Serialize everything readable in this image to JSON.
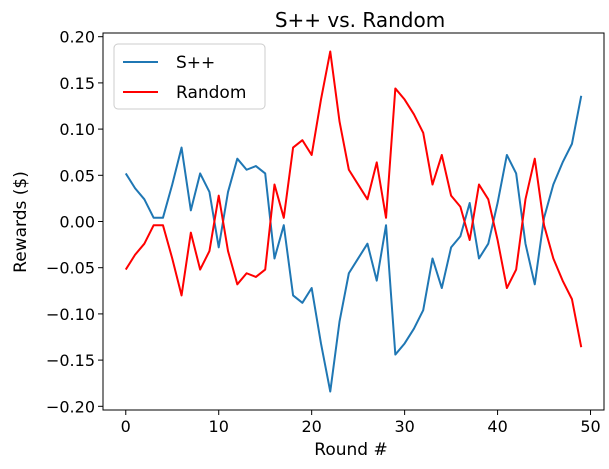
{
  "chart_data": {
    "type": "line",
    "title": "S++ vs. Random",
    "xlabel": "Round #",
    "ylabel": "Rewards ($)",
    "xlim": [
      -2.45,
      51.45
    ],
    "ylim": [
      -0.204,
      0.204
    ],
    "xticks": [
      0,
      10,
      20,
      30,
      40,
      50
    ],
    "yticks": [
      -0.2,
      -0.15,
      -0.1,
      -0.05,
      0.0,
      0.05,
      0.1,
      0.15,
      0.2
    ],
    "xtick_labels": [
      "0",
      "10",
      "20",
      "30",
      "40",
      "50"
    ],
    "ytick_labels": [
      "−0.20",
      "−0.15",
      "−0.10",
      "−0.05",
      "0.00",
      "0.05",
      "0.10",
      "0.15",
      "0.20"
    ],
    "grid": false,
    "legend_position": "top-left",
    "x": [
      0,
      1,
      2,
      3,
      4,
      5,
      6,
      7,
      8,
      9,
      10,
      11,
      12,
      13,
      14,
      15,
      16,
      17,
      18,
      19,
      20,
      21,
      22,
      23,
      24,
      25,
      26,
      27,
      28,
      29,
      30,
      31,
      32,
      33,
      34,
      35,
      36,
      37,
      38,
      39,
      40,
      41,
      42,
      43,
      44,
      45,
      46,
      47,
      48,
      49
    ],
    "series": [
      {
        "name": "S++",
        "color": "#1f77b4",
        "values": [
          0.052,
          0.036,
          0.024,
          0.004,
          0.004,
          0.04,
          0.08,
          0.012,
          0.052,
          0.032,
          -0.028,
          0.032,
          0.068,
          0.056,
          0.06,
          0.052,
          -0.04,
          -0.004,
          -0.08,
          -0.088,
          -0.072,
          -0.132,
          -0.184,
          -0.108,
          -0.056,
          -0.04,
          -0.024,
          -0.064,
          -0.004,
          -0.144,
          -0.132,
          -0.116,
          -0.096,
          -0.04,
          -0.072,
          -0.028,
          -0.016,
          0.02,
          -0.04,
          -0.024,
          0.02,
          0.072,
          0.052,
          -0.024,
          -0.068,
          0.004,
          0.04,
          0.064,
          0.084,
          0.136
        ]
      },
      {
        "name": "Random",
        "color": "#ff0000",
        "values": [
          -0.052,
          -0.036,
          -0.024,
          -0.004,
          -0.004,
          -0.04,
          -0.08,
          -0.012,
          -0.052,
          -0.032,
          0.028,
          -0.032,
          -0.068,
          -0.056,
          -0.06,
          -0.052,
          0.04,
          0.004,
          0.08,
          0.088,
          0.072,
          0.132,
          0.184,
          0.108,
          0.056,
          0.04,
          0.024,
          0.064,
          0.004,
          0.144,
          0.132,
          0.116,
          0.096,
          0.04,
          0.072,
          0.028,
          0.016,
          -0.02,
          0.04,
          0.024,
          -0.02,
          -0.072,
          -0.052,
          0.024,
          0.068,
          -0.004,
          -0.04,
          -0.064,
          -0.084,
          -0.136
        ]
      }
    ]
  }
}
